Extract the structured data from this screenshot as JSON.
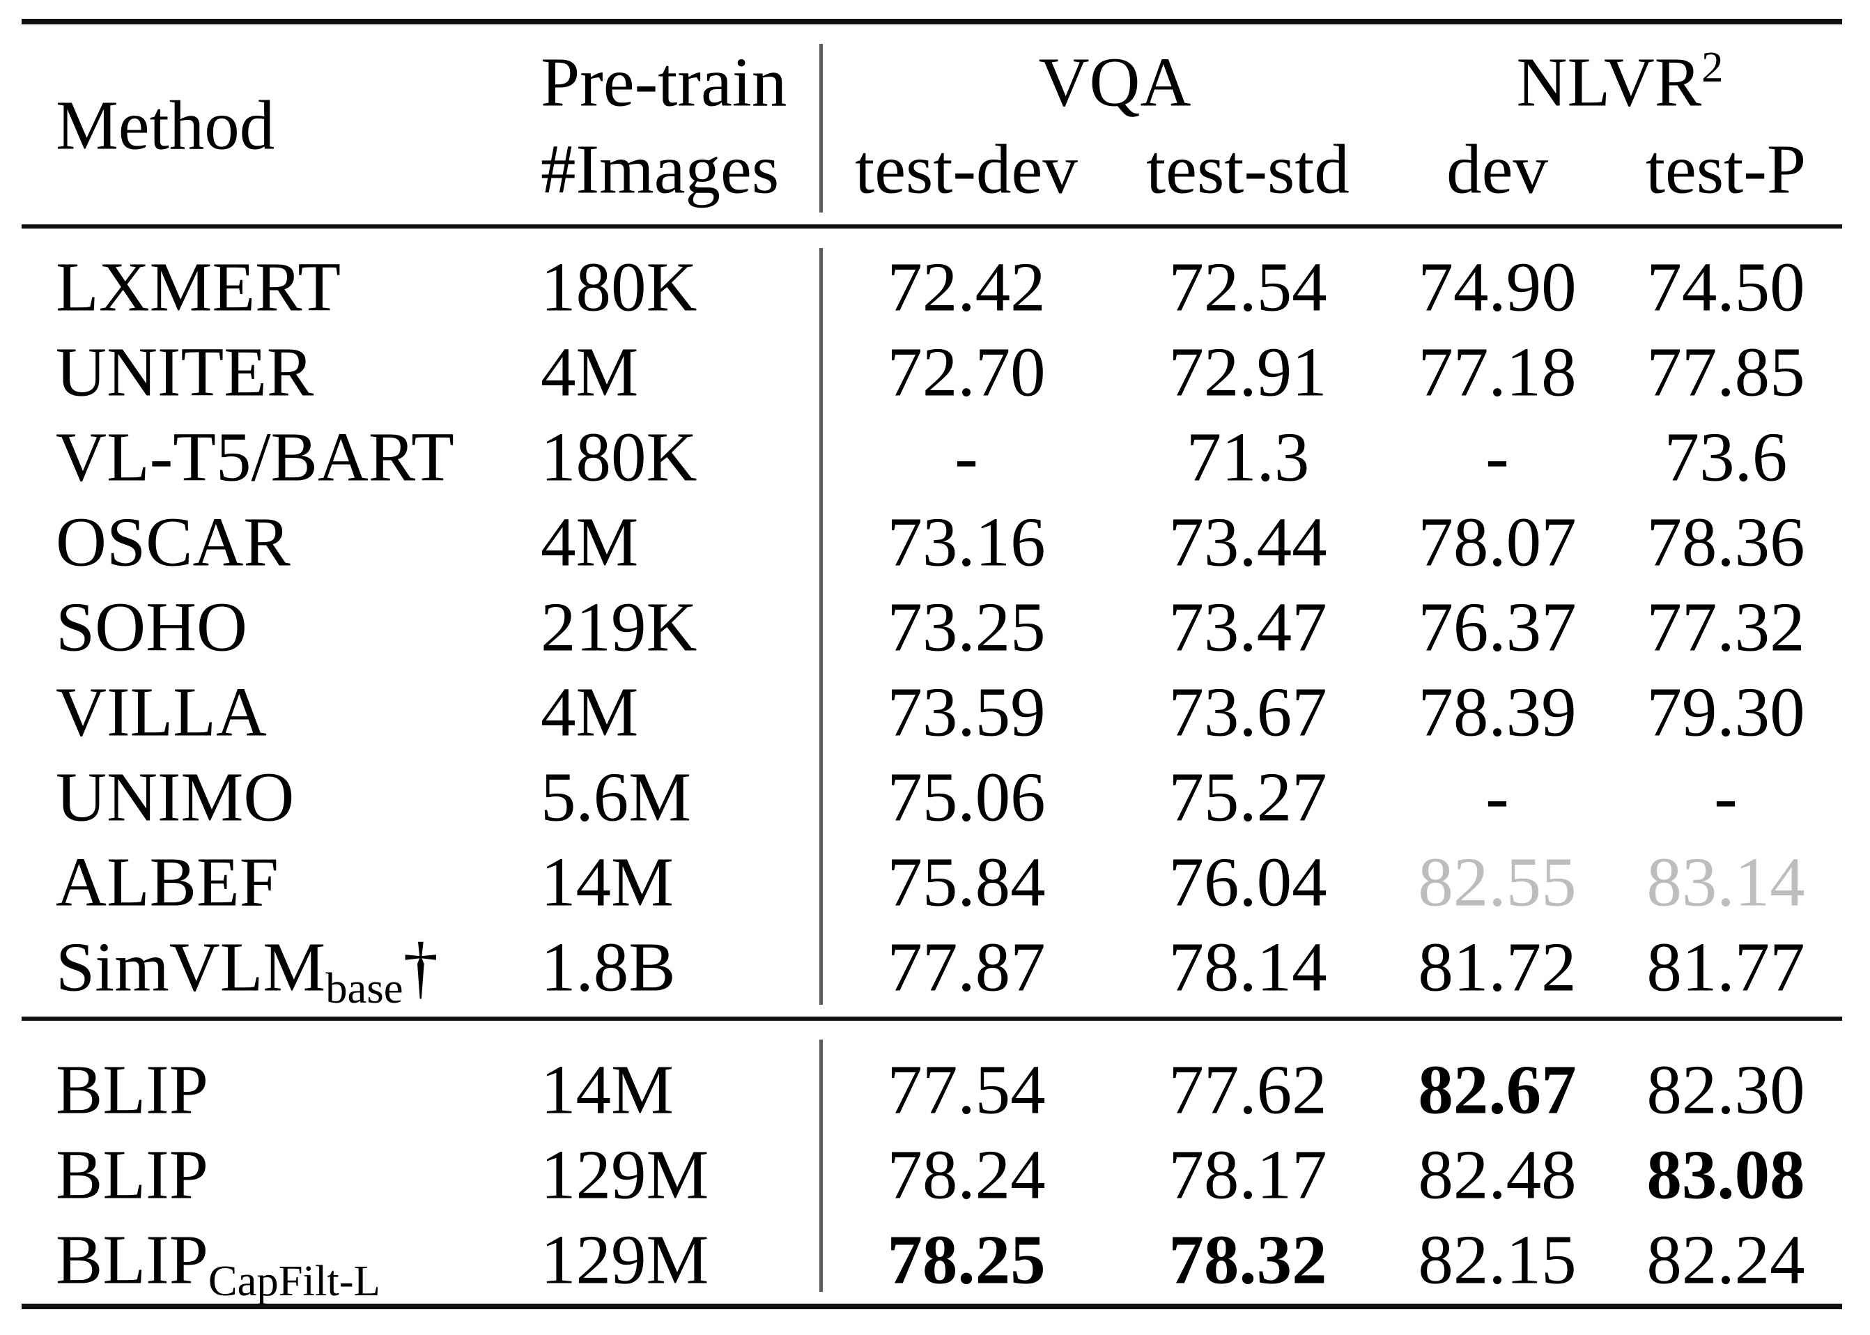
{
  "table": {
    "header": {
      "method": "Method",
      "pretrain_line1": "Pre-train",
      "pretrain_line2": "#Images",
      "vqa": "VQA",
      "nlvr_base": "NLVR",
      "nlvr_sup": "2",
      "vqa_test_dev": "test-dev",
      "vqa_test_std": "test-std",
      "nlvr_dev": "dev",
      "nlvr_test_p": "test-P"
    },
    "rows": [
      {
        "method": "LXMERT",
        "method_sub": "",
        "method_suffix": "",
        "images": "180K",
        "vqa_test_dev": "72.42",
        "vqa_test_std": "72.54",
        "nlvr_dev": "74.90",
        "nlvr_test_p": "74.50"
      },
      {
        "method": "UNITER",
        "method_sub": "",
        "method_suffix": "",
        "images": "4M",
        "vqa_test_dev": "72.70",
        "vqa_test_std": "72.91",
        "nlvr_dev": "77.18",
        "nlvr_test_p": "77.85"
      },
      {
        "method": "VL-T5/BART",
        "method_sub": "",
        "method_suffix": "",
        "images": "180K",
        "vqa_test_dev": "-",
        "vqa_test_std": "71.3",
        "nlvr_dev": "-",
        "nlvr_test_p": "73.6"
      },
      {
        "method": "OSCAR",
        "method_sub": "",
        "method_suffix": "",
        "images": "4M",
        "vqa_test_dev": "73.16",
        "vqa_test_std": "73.44",
        "nlvr_dev": "78.07",
        "nlvr_test_p": "78.36"
      },
      {
        "method": "SOHO",
        "method_sub": "",
        "method_suffix": "",
        "images": "219K",
        "vqa_test_dev": "73.25",
        "vqa_test_std": "73.47",
        "nlvr_dev": "76.37",
        "nlvr_test_p": "77.32"
      },
      {
        "method": "VILLA",
        "method_sub": "",
        "method_suffix": "",
        "images": "4M",
        "vqa_test_dev": "73.59",
        "vqa_test_std": "73.67",
        "nlvr_dev": "78.39",
        "nlvr_test_p": "79.30"
      },
      {
        "method": "UNIMO",
        "method_sub": "",
        "method_suffix": "",
        "images": "5.6M",
        "vqa_test_dev": "75.06",
        "vqa_test_std": "75.27",
        "nlvr_dev": "-",
        "nlvr_test_p": "-"
      },
      {
        "method": "ALBEF",
        "method_sub": "",
        "method_suffix": "",
        "images": "14M",
        "vqa_test_dev": "75.84",
        "vqa_test_std": "76.04",
        "nlvr_dev": "82.55",
        "nlvr_test_p": "83.14"
      },
      {
        "method": "SimVLM",
        "method_sub": "base",
        "method_suffix": "†",
        "images": "1.8B",
        "vqa_test_dev": "77.87",
        "vqa_test_std": "78.14",
        "nlvr_dev": "81.72",
        "nlvr_test_p": "81.77"
      },
      {
        "method": "BLIP",
        "method_sub": "",
        "method_suffix": "",
        "images": "14M",
        "vqa_test_dev": "77.54",
        "vqa_test_std": "77.62",
        "nlvr_dev": "82.67",
        "nlvr_test_p": "82.30"
      },
      {
        "method": "BLIP",
        "method_sub": "",
        "method_suffix": "",
        "images": "129M",
        "vqa_test_dev": "78.24",
        "vqa_test_std": "78.17",
        "nlvr_dev": "82.48",
        "nlvr_test_p": "83.08"
      },
      {
        "method": "BLIP",
        "method_sub": "CapFilt-L",
        "method_suffix": "",
        "images": "129M",
        "vqa_test_dev": "78.25",
        "vqa_test_std": "78.32",
        "nlvr_dev": "82.15",
        "nlvr_test_p": "82.24"
      }
    ],
    "styles": {
      "bold_cells": [
        "9.nlvr_dev",
        "10.nlvr_test_p",
        "11.vqa_test_dev",
        "11.vqa_test_std"
      ],
      "gray_cells": [
        "7.nlvr_dev",
        "7.nlvr_test_p"
      ],
      "gray_color": "#bdbdbd",
      "text_color": "#000000",
      "vertical_rule_color": "#5a5a5a"
    }
  }
}
